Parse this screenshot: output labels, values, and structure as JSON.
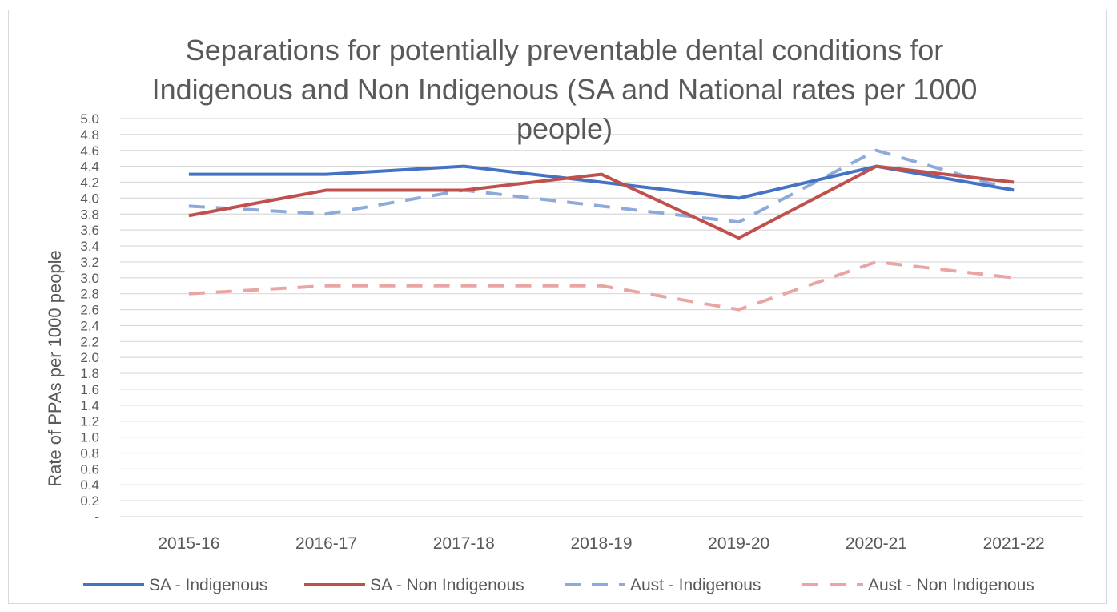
{
  "chart_data": {
    "type": "line",
    "title_lines": [
      "Separations for potentially preventable dental conditions for",
      "Indigenous and Non Indigenous (SA and National rates per 1000",
      "people)"
    ],
    "xlabel": "",
    "ylabel": "Rate of PPAs per 1000 people",
    "categories": [
      "2015-16",
      "2016-17",
      "2017-18",
      "2018-19",
      "2019-20",
      "2020-21",
      "2021-22"
    ],
    "y_ticks": [
      "-",
      "0.2",
      "0.4",
      "0.6",
      "0.8",
      "1.0",
      "1.2",
      "1.4",
      "1.6",
      "1.8",
      "2.0",
      "2.2",
      "2.4",
      "2.6",
      "2.8",
      "3.0",
      "3.2",
      "3.4",
      "3.6",
      "3.8",
      "4.0",
      "4.2",
      "4.4",
      "4.6",
      "4.8",
      "5.0"
    ],
    "ylim": [
      0,
      5.0
    ],
    "grid": true,
    "legend_position": "bottom",
    "series": [
      {
        "name": "SA - Indigenous",
        "color": "#4472c4",
        "dash": "solid",
        "values": [
          4.3,
          4.3,
          4.4,
          4.2,
          4.0,
          4.4,
          4.1
        ]
      },
      {
        "name": "SA - Non Indigenous",
        "color": "#c0504d",
        "dash": "solid",
        "values": [
          3.78,
          4.1,
          4.1,
          4.3,
          3.5,
          4.4,
          4.2
        ]
      },
      {
        "name": "Aust - Indigenous",
        "color": "#8eaadb",
        "dash": "dashed",
        "values": [
          3.9,
          3.8,
          4.1,
          3.9,
          3.7,
          4.6,
          4.1
        ]
      },
      {
        "name": "Aust - Non Indigenous",
        "color": "#e8a5a4",
        "dash": "dashed",
        "values": [
          2.8,
          2.9,
          2.9,
          2.9,
          2.6,
          3.2,
          3.0
        ]
      }
    ]
  }
}
